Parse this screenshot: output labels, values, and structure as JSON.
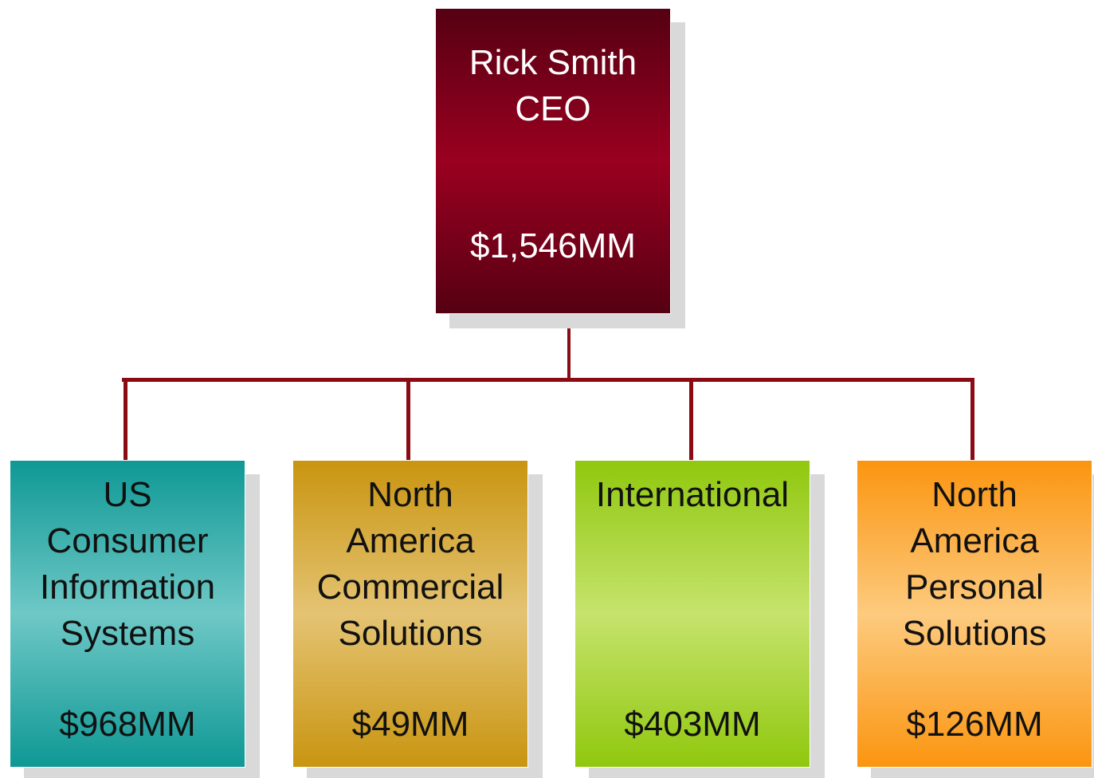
{
  "root": {
    "lines": [
      "Rick Smith",
      "CEO"
    ],
    "value": "$1,546MM"
  },
  "nodes": [
    {
      "lines": [
        "US",
        "Consumer",
        "Information",
        "Systems"
      ],
      "value": "$968MM"
    },
    {
      "lines": [
        "North",
        "America",
        "Commercial",
        "Solutions"
      ],
      "value": "$49MM"
    },
    {
      "lines": [
        "International"
      ],
      "value": "$403MM"
    },
    {
      "lines": [
        "North",
        "America",
        "Personal",
        "Solutions"
      ],
      "value": "$126MM"
    }
  ]
}
